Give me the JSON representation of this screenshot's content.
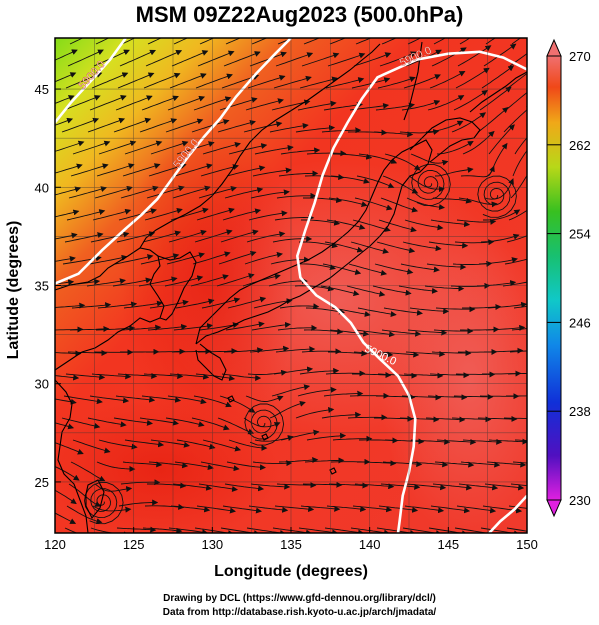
{
  "title": "MSM 09Z22Aug2023 (500.0hPa)",
  "xlabel": "Longitude (degrees)",
  "ylabel": "Latitude  (degrees)",
  "credits": {
    "line1": "Drawing by DCL (https://www.gfd-dennou.org/library/dcl/)",
    "line2": "Data from http://database.rish.kyoto-u.ac.jp/arch/jmadata/"
  },
  "chart_data": {
    "type": "heatmap",
    "variable_contour_label": "5900.0",
    "xlim": [
      120,
      150
    ],
    "ylim": [
      22.4,
      47.6
    ],
    "xticks": [
      120,
      125,
      130,
      135,
      140,
      145,
      150
    ],
    "yticks": [
      25,
      30,
      35,
      40,
      45
    ],
    "colorbar": {
      "min": 230,
      "max": 270,
      "tick_labels": [
        "270",
        "262",
        "254",
        "246",
        "238",
        "230"
      ],
      "tick_values": [
        270,
        262,
        254,
        246,
        238,
        230
      ]
    },
    "contours": [
      {
        "label": "5900.0",
        "points": [
          [
            120,
            35.1
          ],
          [
            121.5,
            35.6
          ],
          [
            123,
            36.8
          ],
          [
            124.5,
            37.9
          ],
          [
            125.5,
            38.6
          ],
          [
            126.5,
            39.4
          ],
          [
            127.5,
            40.5
          ],
          [
            128.5,
            41.6
          ],
          [
            129.5,
            42.6
          ],
          [
            130.5,
            43.5
          ],
          [
            131.5,
            44.6
          ],
          [
            132.8,
            45.8
          ],
          [
            134,
            46.8
          ],
          [
            135,
            47.6
          ]
        ]
      },
      {
        "label": "5900.0",
        "points": [
          [
            120,
            43.3
          ],
          [
            121,
            44.3
          ],
          [
            122.5,
            45.6
          ],
          [
            123.5,
            46.5
          ],
          [
            124.5,
            47.6
          ]
        ]
      },
      {
        "label": "5900.0",
        "points": [
          [
            150,
            46.0
          ],
          [
            148.5,
            46.6
          ],
          [
            147,
            46.9
          ],
          [
            145,
            46.8
          ],
          [
            143,
            46.5
          ],
          [
            140.5,
            45.6
          ],
          [
            139.5,
            44.5
          ],
          [
            138.6,
            43.3
          ],
          [
            137.7,
            42.0
          ],
          [
            137,
            40.6
          ],
          [
            136.5,
            39.2
          ],
          [
            135.9,
            37.8
          ],
          [
            135.4,
            36.5
          ],
          [
            135.6,
            35.4
          ],
          [
            136.6,
            34.5
          ],
          [
            137.8,
            33.9
          ],
          [
            138.8,
            33.1
          ],
          [
            139.6,
            32.1
          ],
          [
            140.6,
            31.3
          ],
          [
            141.8,
            30.4
          ],
          [
            142.5,
            29.4
          ],
          [
            142.9,
            28.2
          ],
          [
            142.8,
            26.8
          ],
          [
            142.5,
            25.5
          ],
          [
            142.1,
            24.3
          ],
          [
            141.9,
            23.0
          ],
          [
            141.8,
            22.4
          ]
        ]
      },
      {
        "label": "",
        "points": [
          [
            150,
            24.3
          ],
          [
            149.2,
            23.6
          ],
          [
            148.3,
            23.0
          ],
          [
            147.6,
            22.4
          ]
        ]
      }
    ],
    "vortices": [
      {
        "lon": 148.0,
        "lat": 39.6
      },
      {
        "lon": 143.8,
        "lat": 40.2
      },
      {
        "lon": 133.2,
        "lat": 28.0
      },
      {
        "lon": 123.0,
        "lat": 24.0
      }
    ]
  }
}
